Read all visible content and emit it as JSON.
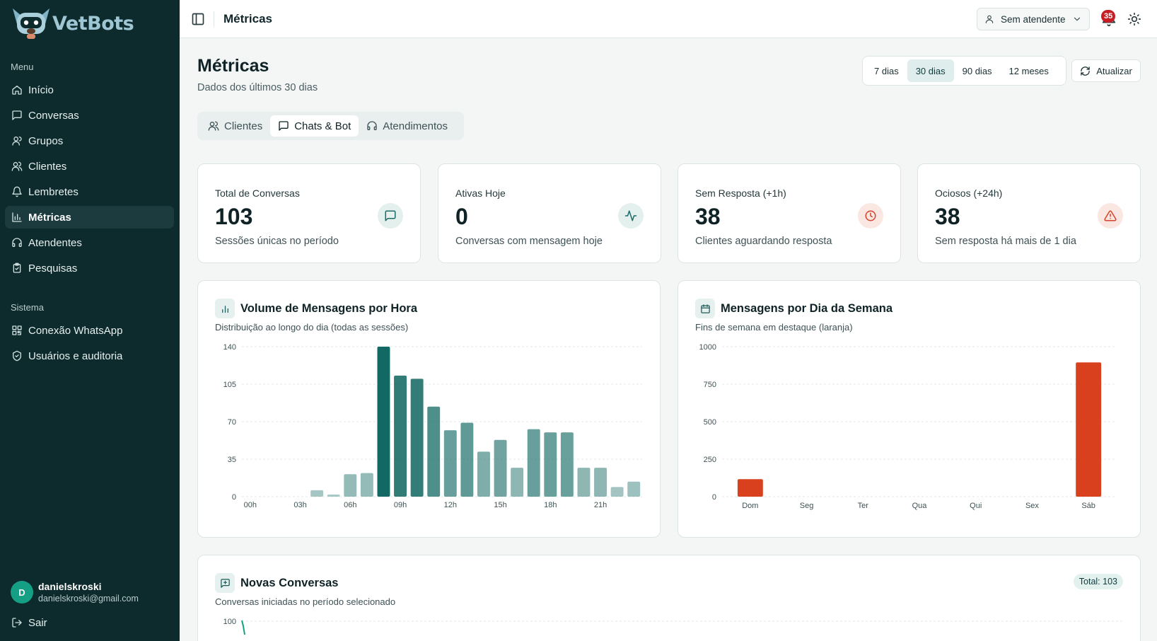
{
  "app": {
    "name": "VetBots"
  },
  "sidebar": {
    "menu_label": "Menu",
    "items": [
      {
        "label": "Início",
        "icon": "home-icon"
      },
      {
        "label": "Conversas",
        "icon": "message-icon"
      },
      {
        "label": "Grupos",
        "icon": "group-icon"
      },
      {
        "label": "Clientes",
        "icon": "users-icon"
      },
      {
        "label": "Lembretes",
        "icon": "bell-icon"
      },
      {
        "label": "Métricas",
        "icon": "bar-chart-icon",
        "active": true
      },
      {
        "label": "Atendentes",
        "icon": "headset-icon"
      },
      {
        "label": "Pesquisas",
        "icon": "clipboard-icon"
      }
    ],
    "system_label": "Sistema",
    "system_items": [
      {
        "label": "Conexão WhatsApp",
        "icon": "qr-code-icon"
      },
      {
        "label": "Usuários e auditoria",
        "icon": "shield-icon"
      }
    ],
    "user": {
      "initial": "D",
      "name": "danielskroski",
      "email": "danielskroski@gmail.com"
    },
    "logout_label": "Sair"
  },
  "topbar": {
    "title": "Métricas",
    "agent_select": "Sem atendente",
    "notifications": "35"
  },
  "page": {
    "title": "Métricas",
    "subtitle": "Dados dos últimos 30 dias",
    "ranges": [
      "7 dias",
      "30 dias",
      "90 dias",
      "12 meses"
    ],
    "active_range": "30 dias",
    "refresh_label": "Atualizar",
    "tabs": [
      "Clientes",
      "Chats & Bot",
      "Atendimentos"
    ],
    "active_tab": "Chats & Bot"
  },
  "kpis": [
    {
      "label": "Total de Conversas",
      "value": "103",
      "desc": "Sessões únicas no período",
      "icon": "message-icon",
      "color": "#1d6b66"
    },
    {
      "label": "Ativas Hoje",
      "value": "0",
      "desc": "Conversas com mensagem hoje",
      "icon": "activity-icon",
      "color": "#1d6b66"
    },
    {
      "label": "Sem Resposta (+1h)",
      "value": "38",
      "desc": "Clientes aguardando resposta",
      "icon": "clock-icon",
      "color": "#d9412a"
    },
    {
      "label": "Ociosos (+24h)",
      "value": "38",
      "desc": "Sem resposta há mais de 1 dia",
      "icon": "alert-triangle-icon",
      "color": "#d9412a"
    }
  ],
  "panels": {
    "hourly": {
      "title": "Volume de Mensagens por Hora",
      "subtitle": "Distribuição ao longo do dia (todas as sessões)"
    },
    "weekday": {
      "title": "Mensagens por Dia da Semana",
      "subtitle": "Fins de semana em destaque (laranja)"
    },
    "new": {
      "title": "Novas Conversas",
      "subtitle": "Conversas iniciadas no período selecionado",
      "total_label": "Total: 103",
      "y_top": "100"
    }
  },
  "chart_data": [
    {
      "type": "bar",
      "title": "Volume de Mensagens por Hora",
      "categories": [
        "00h",
        "01h",
        "02h",
        "03h",
        "04h",
        "05h",
        "06h",
        "07h",
        "08h",
        "09h",
        "10h",
        "11h",
        "12h",
        "13h",
        "14h",
        "15h",
        "16h",
        "17h",
        "18h",
        "19h",
        "20h",
        "21h",
        "22h",
        "23h"
      ],
      "tick_labels": [
        "00h",
        "03h",
        "06h",
        "09h",
        "12h",
        "15h",
        "18h",
        "21h"
      ],
      "values": [
        0,
        0,
        0,
        0,
        6,
        2,
        21,
        22,
        140,
        113,
        110,
        84,
        62,
        69,
        42,
        53,
        27,
        63,
        60,
        60,
        27,
        27,
        9,
        14
      ],
      "ylim": [
        0,
        140
      ],
      "yticks": [
        0,
        35,
        70,
        105,
        140
      ],
      "grid": true
    },
    {
      "type": "bar",
      "title": "Mensagens por Dia da Semana",
      "categories": [
        "Dom",
        "Seg",
        "Ter",
        "Qua",
        "Qui",
        "Sex",
        "Sáb"
      ],
      "values": [
        117,
        0,
        0,
        0,
        0,
        0,
        895
      ],
      "ylim": [
        0,
        1000
      ],
      "yticks": [
        0,
        250,
        500,
        750,
        1000
      ],
      "colors": {
        "weekend": "#d9411e"
      },
      "grid": true
    }
  ]
}
